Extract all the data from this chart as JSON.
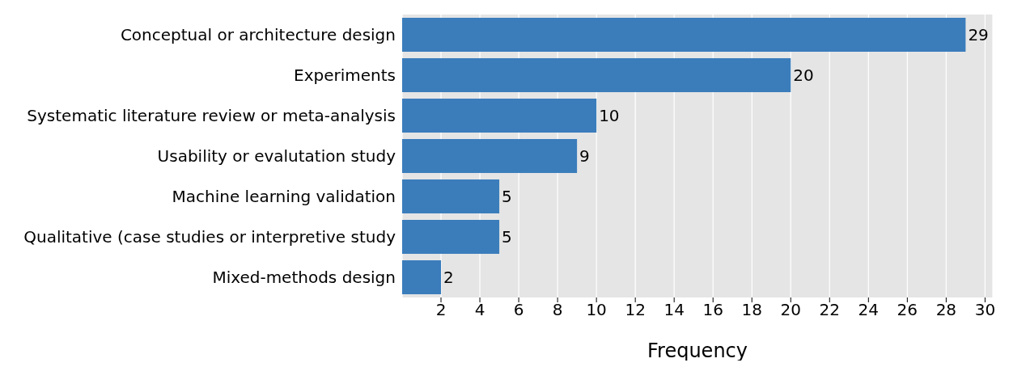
{
  "chart_data": {
    "type": "bar",
    "orientation": "horizontal",
    "xlabel": "Frequency",
    "categories": [
      "Conceptual or architecture design",
      "Experiments",
      "Systematic literature review or meta-analysis",
      "Usability or evalutation study",
      "Machine learning validation",
      "Qualitative (case studies or interpretive study",
      "Mixed-methods design"
    ],
    "values": [
      29,
      20,
      10,
      9,
      5,
      5,
      2
    ],
    "color": "#3b7dbb",
    "xlim": [
      0,
      30.4
    ],
    "xticks": [
      2,
      4,
      6,
      8,
      10,
      12,
      14,
      16,
      18,
      20,
      22,
      24,
      26,
      28,
      30
    ],
    "grid": "x",
    "data_labels": true
  }
}
